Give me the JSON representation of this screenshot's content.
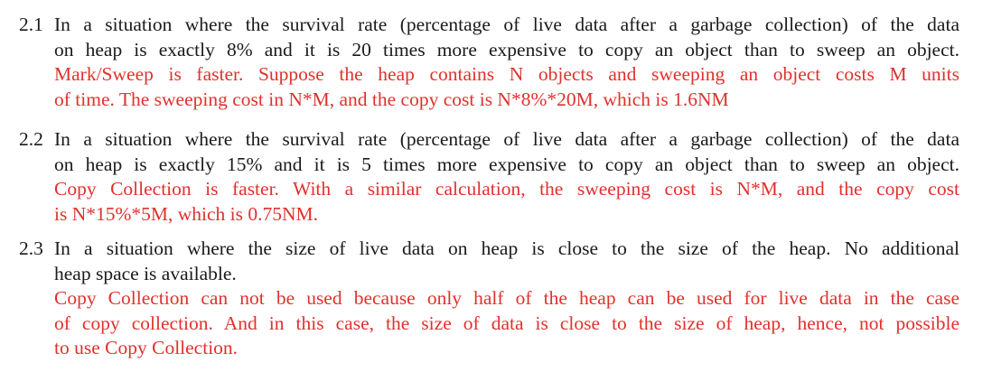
{
  "colors": {
    "text": "#1a1a1a",
    "answer": "#e0312d"
  },
  "items": [
    {
      "number": "2.1",
      "question_lines": [
        "In a situation where the survival rate (percentage of live data after a garbage collection) of the data",
        "on heap is exactly 8% and it is 20 times more expensive to copy an object than to sweep an object."
      ],
      "answer_lines": [
        "Mark/Sweep is faster. Suppose the heap contains N objects and sweeping an object costs M units",
        "of time. The sweeping cost in N*M, and the copy cost is N*8%*20M, which is 1.6NM"
      ]
    },
    {
      "number": "2.2",
      "question_lines": [
        "In a situation where the survival rate (percentage of live data after a garbage collection) of the data",
        "on heap is exactly 15% and it is 5 times more expensive to copy an object than to sweep an object."
      ],
      "answer_lines": [
        "Copy Collection is faster. With a similar calculation, the sweeping cost is N*M, and the copy cost",
        "is N*15%*5M, which is 0.75NM."
      ]
    },
    {
      "number": "2.3",
      "question_lines": [
        "In a situation where the size of live data on heap is close to the size of the heap. No additional",
        "heap space is available."
      ],
      "answer_lines": [
        "Copy Collection can not be used because only half of the heap can be used for live data in the case",
        "of copy collection. And in this case, the size of data is close to the size of heap, hence, not possible",
        "to use Copy Collection."
      ]
    }
  ]
}
